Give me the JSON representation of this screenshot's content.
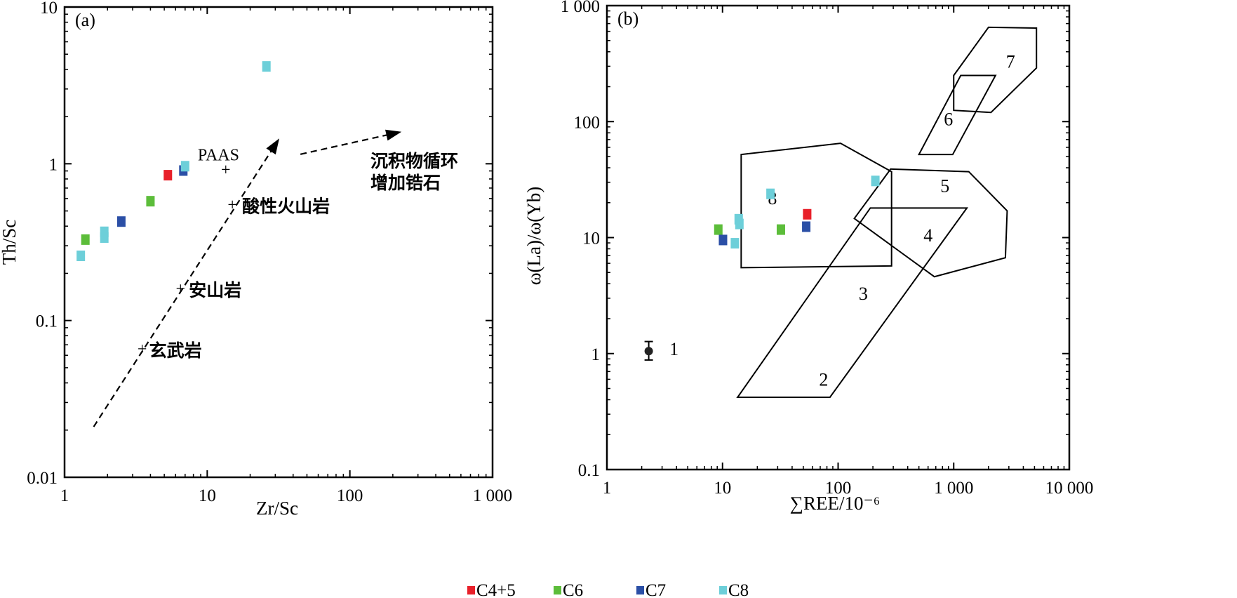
{
  "chart_data": [
    {
      "panel_label": "(a)",
      "type": "scatter",
      "xlabel": "Zr/Sc",
      "ylabel": "Th/Sc",
      "x_scale": "log",
      "y_scale": "log",
      "xlim": [
        1,
        1000
      ],
      "ylim": [
        0.01,
        10
      ],
      "x_ticks": [
        "1",
        "10",
        "100",
        "1 000"
      ],
      "y_ticks": [
        "0.01",
        "0.1",
        "1",
        "10"
      ],
      "series": [
        {
          "name": "C4+5",
          "color": "#e8202a",
          "points": [
            [
              5.3,
              0.85
            ]
          ]
        },
        {
          "name": "C6",
          "color": "#5cbd3a",
          "points": [
            [
              1.4,
              0.33
            ],
            [
              4.0,
              0.58
            ]
          ]
        },
        {
          "name": "C7",
          "color": "#2b4fa6",
          "points": [
            [
              2.5,
              0.43
            ],
            [
              6.8,
              0.91
            ]
          ]
        },
        {
          "name": "C8",
          "color": "#6dcfd9",
          "points": [
            [
              1.3,
              0.26
            ],
            [
              1.9,
              0.34
            ],
            [
              1.9,
              0.37
            ],
            [
              7.0,
              0.97
            ],
            [
              26,
              4.2
            ]
          ]
        }
      ],
      "annotations": [
        {
          "text": "PAAS",
          "marker": "+",
          "x": 13.5,
          "y": 0.92
        },
        {
          "text": "酸性火山岩",
          "marker": "+",
          "x": 15,
          "y": 0.55
        },
        {
          "text": "安山岩",
          "marker": "+",
          "x": 6.5,
          "y": 0.16
        },
        {
          "text": "玄武岩",
          "marker": "+",
          "x": 3.5,
          "y": 0.066
        },
        {
          "text_lines": [
            "沉积物循环",
            "增加锆石"
          ]
        }
      ],
      "arrows": [
        {
          "from": [
            1.6,
            0.021
          ],
          "to": [
            32,
            1.45
          ],
          "style": "dashed"
        },
        {
          "from": [
            45,
            1.15
          ],
          "to": [
            230,
            1.6
          ],
          "style": "dashed"
        }
      ]
    },
    {
      "panel_label": "(b)",
      "type": "scatter",
      "xlabel": "∑REE/10⁻⁶",
      "ylabel": "ω(La)/ω(Yb)",
      "x_scale": "log",
      "y_scale": "log",
      "xlim": [
        1,
        10000
      ],
      "ylim": [
        0.1,
        1000
      ],
      "x_ticks": [
        "1",
        "10",
        "100",
        "1 000",
        "10 000"
      ],
      "y_ticks": [
        "0.1",
        "1",
        "10",
        "100",
        "1 000"
      ],
      "series": [
        {
          "name": "C4+5",
          "color": "#e8202a",
          "points": [
            [
              54,
              16
            ]
          ]
        },
        {
          "name": "C6",
          "color": "#5cbd3a",
          "points": [
            [
              9.2,
              11.8
            ],
            [
              32,
              11.8
            ]
          ]
        },
        {
          "name": "C7",
          "color": "#2b4fa6",
          "points": [
            [
              10.1,
              9.6
            ],
            [
              53,
              12.5
            ]
          ]
        },
        {
          "name": "C8",
          "color": "#6dcfd9",
          "points": [
            [
              13.8,
              14.5
            ],
            [
              14,
              13.2
            ],
            [
              12.8,
              9.0
            ],
            [
              26,
              24
            ],
            [
              210,
              31
            ]
          ]
        }
      ],
      "point_1": {
        "label": "1",
        "x": 2.3,
        "y": 1.05,
        "err_low": 0.88,
        "err_high": 1.27
      },
      "fields": [
        {
          "label": "2",
          "label_at": [
            75,
            0.6
          ],
          "vertices": [
            [
              13.5,
              0.42
            ],
            [
              85,
              0.42
            ],
            [
              1300,
              18
            ],
            [
              190,
              18
            ]
          ]
        },
        {
          "label": "3",
          "label_at": [
            165,
            3.3
          ],
          "vertices": []
        },
        {
          "label": "4",
          "label_at": [
            600,
            10.5
          ],
          "vertices": [
            [
              138,
              14.6
            ],
            [
              285,
              39
            ],
            [
              1350,
              37
            ],
            [
              2900,
              17
            ],
            [
              2800,
              6.7
            ],
            [
              680,
              4.6
            ]
          ]
        },
        {
          "label": "5",
          "label_at": [
            840,
            28
          ],
          "vertices": []
        },
        {
          "label": "6",
          "label_at": [
            900,
            105
          ],
          "vertices": [
            [
              500,
              52
            ],
            [
              980,
              52
            ],
            [
              2300,
              250
            ],
            [
              1150,
              250
            ]
          ]
        },
        {
          "label": "7",
          "label_at": [
            3100,
            330
          ],
          "vertices": [
            [
              1000,
              250
            ],
            [
              2000,
              650
            ],
            [
              5200,
              640
            ],
            [
              5200,
              290
            ],
            [
              2100,
              120
            ],
            [
              1000,
              125
            ]
          ]
        },
        {
          "label": "8",
          "label_at": [
            27,
            22
          ],
          "vertices": [
            [
              14.5,
              52
            ],
            [
              105,
              65
            ],
            [
              290,
              37
            ],
            [
              290,
              5.7
            ],
            [
              14.5,
              5.5
            ]
          ]
        }
      ]
    }
  ],
  "legend": [
    {
      "label": "C4+5",
      "color": "#e8202a"
    },
    {
      "label": "C6",
      "color": "#5cbd3a"
    },
    {
      "label": "C7",
      "color": "#2b4fa6"
    },
    {
      "label": "C8",
      "color": "#6dcfd9"
    }
  ]
}
